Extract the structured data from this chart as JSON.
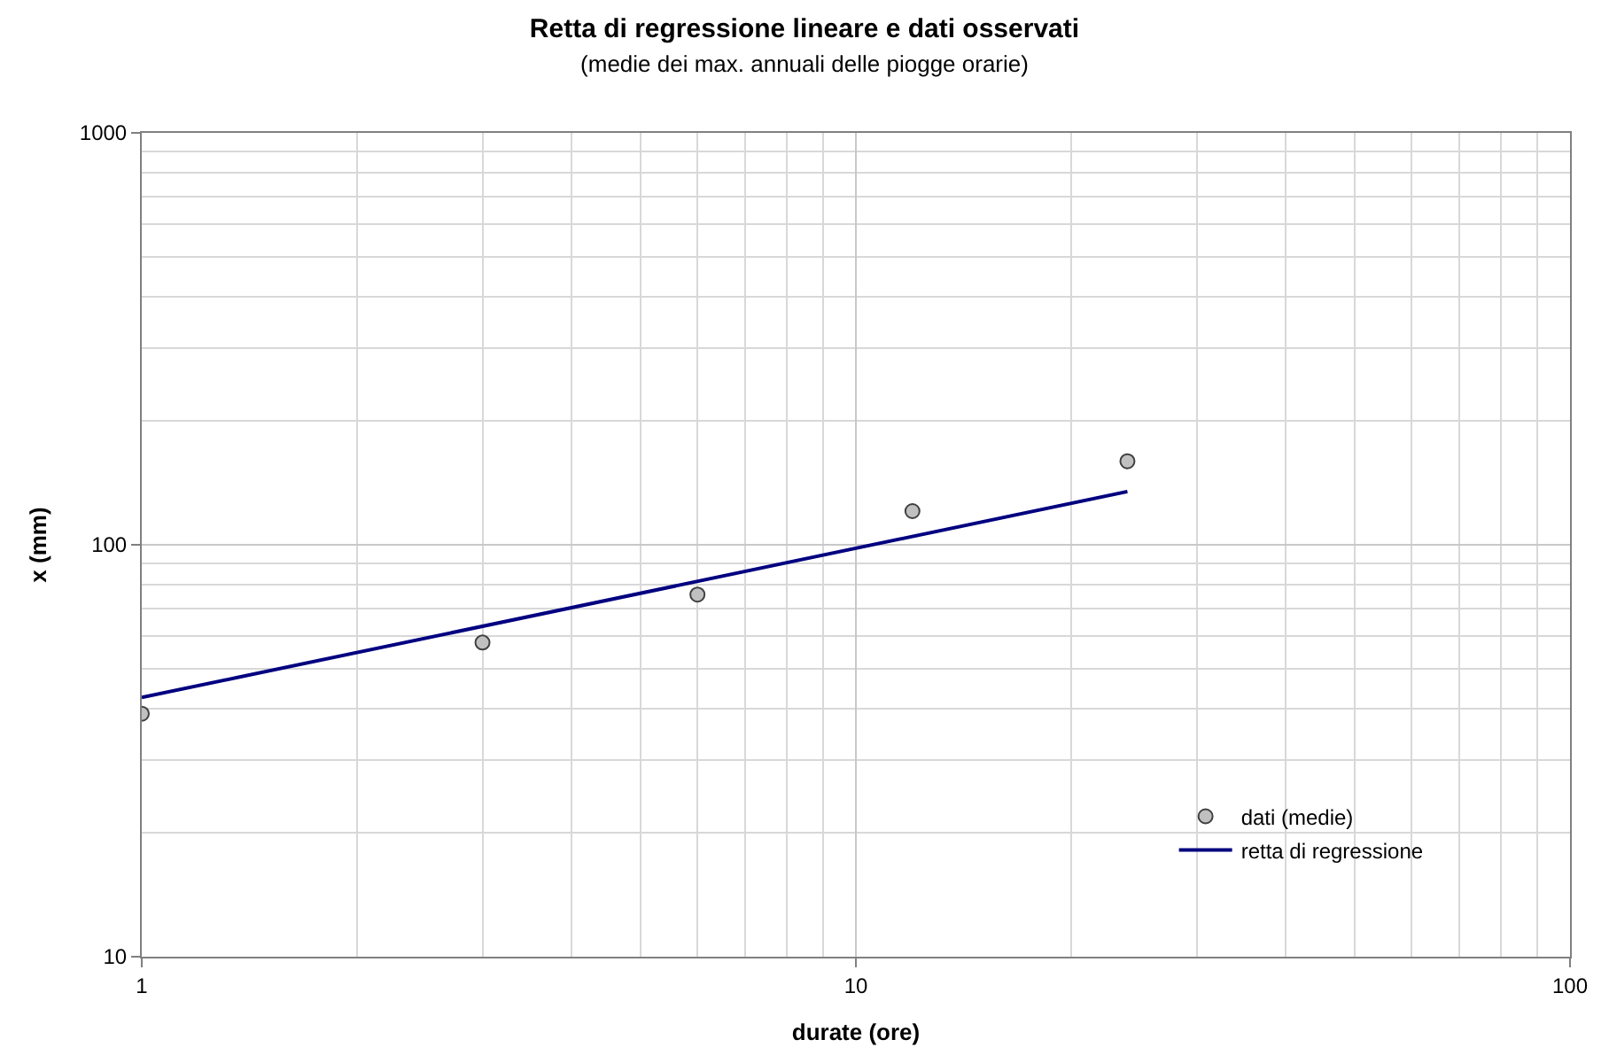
{
  "chart_data": {
    "type": "scatter",
    "title": "Retta di regressione lineare e dati osservati",
    "subtitle": "(medie dei max. annuali delle piogge orarie)",
    "xlabel": "durate (ore)",
    "ylabel": "x (mm)",
    "series": [
      {
        "name": "dati (medie)",
        "marker": "circle",
        "color": "#c0c0c0",
        "x": [
          1,
          3,
          6,
          12,
          24
        ],
        "values": [
          38.9,
          57.9,
          75.7,
          120.7,
          159.5
        ]
      },
      {
        "name": "retta di regressione",
        "type": "line",
        "marker": "none",
        "color": "#000080",
        "x": [
          1,
          24
        ],
        "values": [
          42.6,
          134.7
        ]
      }
    ],
    "log": "xy",
    "xlim": [
      1,
      100
    ],
    "ylim": [
      10,
      1000
    ],
    "xticks": [
      1,
      10,
      100
    ],
    "yticks": [
      10,
      100,
      1000
    ],
    "grid": true,
    "legend": "bottom right",
    "line_style": "solid"
  }
}
